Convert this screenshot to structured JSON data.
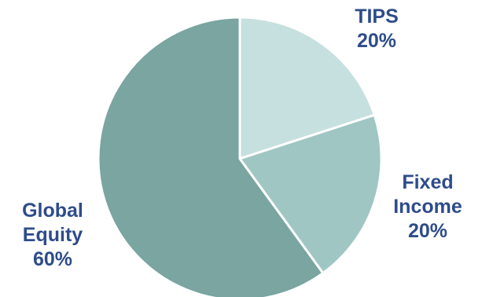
{
  "chart_data": {
    "type": "pie",
    "title": "",
    "start_angle_deg": 0,
    "direction": "clockwise",
    "slices": [
      {
        "label_lines": [
          "TIPS",
          "20%"
        ],
        "value": 20,
        "color": "#c6e0df"
      },
      {
        "label_lines": [
          "Fixed",
          "Income",
          "20%"
        ],
        "value": 20,
        "color": "#9fc6c3"
      },
      {
        "label_lines": [
          "Global",
          "Equity",
          "60%"
        ],
        "value": 60,
        "color": "#7aa5a1"
      }
    ],
    "label_color": "#2e4c8a"
  }
}
